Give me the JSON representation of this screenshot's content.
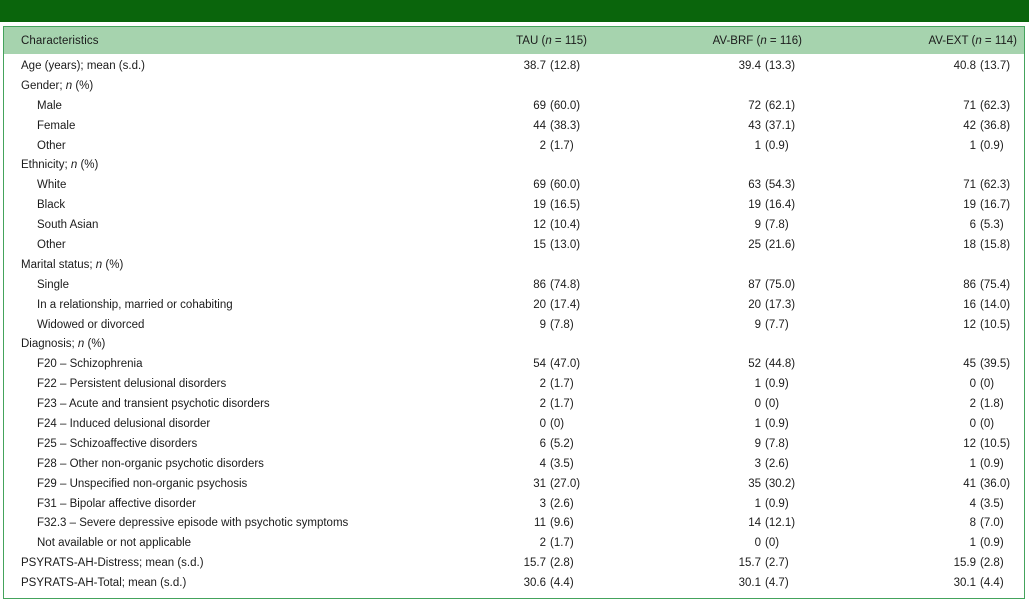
{
  "colors": {
    "top_bar": "#0a650c",
    "header_bg": "#a6d3ae",
    "border": "#44a35c",
    "text": "#1b1b1b"
  },
  "table": {
    "header": {
      "characteristics": "Characteristics",
      "columns": [
        "TAU (*n* = 115)",
        "AV-BRF (*n* = 116)",
        "AV-EXT (*n* = 114)"
      ]
    },
    "rows": [
      {
        "label": "Age (years); mean (s.d.)",
        "indent": 0,
        "values": [
          "38.7 (12.8)",
          "39.4 (13.3)",
          "40.8 (13.7)"
        ]
      },
      {
        "label": "Gender; *n* (%)",
        "indent": 0,
        "values": [
          "",
          "",
          ""
        ]
      },
      {
        "label": "Male",
        "indent": 1,
        "values": [
          "69 (60.0)",
          "72 (62.1)",
          "71 (62.3)"
        ]
      },
      {
        "label": "Female",
        "indent": 1,
        "values": [
          "44 (38.3)",
          "43 (37.1)",
          "42 (36.8)"
        ]
      },
      {
        "label": "Other",
        "indent": 1,
        "values": [
          "2 (1.7)",
          "1 (0.9)",
          "1 (0.9)"
        ]
      },
      {
        "label": "Ethnicity; *n* (%)",
        "indent": 0,
        "values": [
          "",
          "",
          ""
        ]
      },
      {
        "label": "White",
        "indent": 1,
        "values": [
          "69 (60.0)",
          "63 (54.3)",
          "71 (62.3)"
        ]
      },
      {
        "label": "Black",
        "indent": 1,
        "values": [
          "19 (16.5)",
          "19 (16.4)",
          "19 (16.7)"
        ]
      },
      {
        "label": "South Asian",
        "indent": 1,
        "values": [
          "12 (10.4)",
          "9 (7.8)",
          "6 (5.3)"
        ]
      },
      {
        "label": "Other",
        "indent": 1,
        "values": [
          "15 (13.0)",
          "25 (21.6)",
          "18 (15.8)"
        ]
      },
      {
        "label": "Marital status; *n* (%)",
        "indent": 0,
        "values": [
          "",
          "",
          ""
        ]
      },
      {
        "label": "Single",
        "indent": 1,
        "values": [
          "86 (74.8)",
          "87 (75.0)",
          "86 (75.4)"
        ]
      },
      {
        "label": "In a relationship, married or cohabiting",
        "indent": 1,
        "values": [
          "20 (17.4)",
          "20 (17.3)",
          "16 (14.0)"
        ]
      },
      {
        "label": "Widowed or divorced",
        "indent": 1,
        "values": [
          "9 (7.8)",
          "9 (7.7)",
          "12 (10.5)"
        ]
      },
      {
        "label": "Diagnosis; *n* (%)",
        "indent": 0,
        "values": [
          "",
          "",
          ""
        ]
      },
      {
        "label": "F20 – Schizophrenia",
        "indent": 1,
        "values": [
          "54 (47.0)",
          "52 (44.8)",
          "45 (39.5)"
        ]
      },
      {
        "label": "F22 – Persistent delusional disorders",
        "indent": 1,
        "values": [
          "2 (1.7)",
          "1 (0.9)",
          "0 (0)"
        ]
      },
      {
        "label": "F23 – Acute and transient psychotic disorders",
        "indent": 1,
        "values": [
          "2 (1.7)",
          "0 (0)",
          "2 (1.8)"
        ]
      },
      {
        "label": "F24 – Induced delusional disorder",
        "indent": 1,
        "values": [
          "0 (0)",
          "1 (0.9)",
          "0 (0)"
        ]
      },
      {
        "label": "F25 – Schizoaffective disorders",
        "indent": 1,
        "values": [
          "6 (5.2)",
          "9 (7.8)",
          "12 (10.5)"
        ]
      },
      {
        "label": "F28 – Other non-organic psychotic disorders",
        "indent": 1,
        "values": [
          "4 (3.5)",
          "3 (2.6)",
          "1 (0.9)"
        ]
      },
      {
        "label": "F29 – Unspecified non-organic psychosis",
        "indent": 1,
        "values": [
          "31 (27.0)",
          "35 (30.2)",
          "41 (36.0)"
        ]
      },
      {
        "label": "F31 – Bipolar affective disorder",
        "indent": 1,
        "values": [
          "3 (2.6)",
          "1 (0.9)",
          "4 (3.5)"
        ]
      },
      {
        "label": "F32.3 – Severe depressive episode with psychotic symptoms",
        "indent": 1,
        "values": [
          "11 (9.6)",
          "14 (12.1)",
          "8 (7.0)"
        ]
      },
      {
        "label": "Not available or not applicable",
        "indent": 1,
        "values": [
          "2 (1.7)",
          "0 (0)",
          "1 (0.9)"
        ]
      },
      {
        "label": "PSYRATS-AH-Distress; mean (s.d.)",
        "indent": 0,
        "values": [
          "15.7 (2.8)",
          "15.7 (2.7)",
          "15.9 (2.8)"
        ]
      },
      {
        "label": "PSYRATS-AH-Total; mean (s.d.)",
        "indent": 0,
        "values": [
          "30.6 (4.4)",
          "30.1 (4.7)",
          "30.1 (4.4)"
        ]
      }
    ]
  }
}
